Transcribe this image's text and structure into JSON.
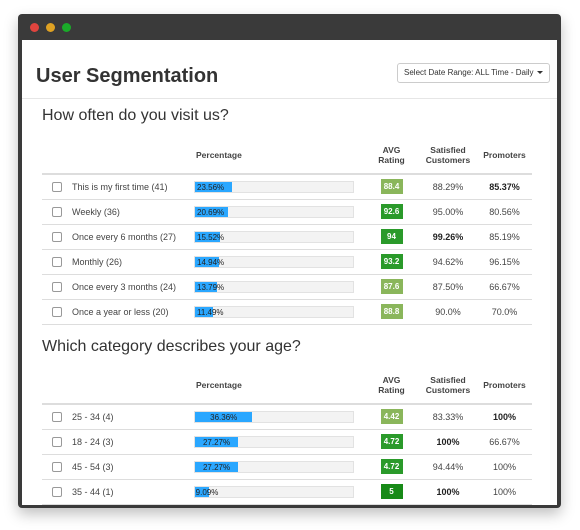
{
  "window": {
    "controls": [
      "close",
      "minimize",
      "maximize"
    ]
  },
  "header": {
    "title": "User Segmentation",
    "date_range_button": "Select Date Range: ALL Time - Daily"
  },
  "colors": {
    "bar": "#2aa7ff",
    "badge_light": "#8ab65b",
    "badge_dark": "#2a9a2a",
    "badge_green": "#178a17"
  },
  "sections": [
    {
      "title": "How often do you visit us?",
      "columns": {
        "percentage": "Percentage",
        "rating_line1": "AVG",
        "rating_line2": "Rating",
        "satisfied_line1": "Satisfied",
        "satisfied_line2": "Customers",
        "promoters": "Promoters"
      },
      "rows": [
        {
          "label": "This is my first time (41)",
          "percentage": "23.56%",
          "fraction": 0.2356,
          "rating": "88.4",
          "rating_style": "light",
          "satisfied": "88.29%",
          "satisfied_bold": false,
          "promoters": "85.37%",
          "promoters_bold": true
        },
        {
          "label": "Weekly (36)",
          "percentage": "20.69%",
          "fraction": 0.2069,
          "rating": "92.6",
          "rating_style": "dark",
          "satisfied": "95.00%",
          "satisfied_bold": false,
          "promoters": "80.56%",
          "promoters_bold": false
        },
        {
          "label": "Once every 6 months (27)",
          "percentage": "15.52%",
          "fraction": 0.1552,
          "rating": "94",
          "rating_style": "dark",
          "satisfied": "99.26%",
          "satisfied_bold": true,
          "promoters": "85.19%",
          "promoters_bold": false
        },
        {
          "label": "Monthly (26)",
          "percentage": "14.94%",
          "fraction": 0.1494,
          "rating": "93.2",
          "rating_style": "dark",
          "satisfied": "94.62%",
          "satisfied_bold": false,
          "promoters": "96.15%",
          "promoters_bold": false
        },
        {
          "label": "Once every 3 months (24)",
          "percentage": "13.79%",
          "fraction": 0.1379,
          "rating": "87.6",
          "rating_style": "light",
          "satisfied": "87.50%",
          "satisfied_bold": false,
          "promoters": "66.67%",
          "promoters_bold": false
        },
        {
          "label": "Once a year or less (20)",
          "percentage": "11.49%",
          "fraction": 0.1149,
          "rating": "88.8",
          "rating_style": "light",
          "satisfied": "90.0%",
          "satisfied_bold": false,
          "promoters": "70.0%",
          "promoters_bold": false
        }
      ]
    },
    {
      "title": "Which category describes your age?",
      "columns": {
        "percentage": "Percentage",
        "rating_line1": "AVG",
        "rating_line2": "Rating",
        "satisfied_line1": "Satisfied",
        "satisfied_line2": "Customers",
        "promoters": "Promoters"
      },
      "rows": [
        {
          "label": "25 - 34 (4)",
          "percentage": "36.36%",
          "fraction": 0.3636,
          "rating": "4.42",
          "rating_style": "light",
          "satisfied": "83.33%",
          "satisfied_bold": false,
          "promoters": "100%",
          "promoters_bold": true
        },
        {
          "label": "18 - 24 (3)",
          "percentage": "27.27%",
          "fraction": 0.2727,
          "rating": "4.72",
          "rating_style": "dark",
          "satisfied": "100%",
          "satisfied_bold": true,
          "promoters": "66.67%",
          "promoters_bold": false
        },
        {
          "label": "45 - 54 (3)",
          "percentage": "27.27%",
          "fraction": 0.2727,
          "rating": "4.72",
          "rating_style": "dark",
          "satisfied": "94.44%",
          "satisfied_bold": false,
          "promoters": "100%",
          "promoters_bold": false
        },
        {
          "label": "35 - 44 (1)",
          "percentage": "9.09%",
          "fraction": 0.0909,
          "rating": "5",
          "rating_style": "green",
          "satisfied": "100%",
          "satisfied_bold": true,
          "promoters": "100%",
          "promoters_bold": false
        }
      ]
    }
  ]
}
